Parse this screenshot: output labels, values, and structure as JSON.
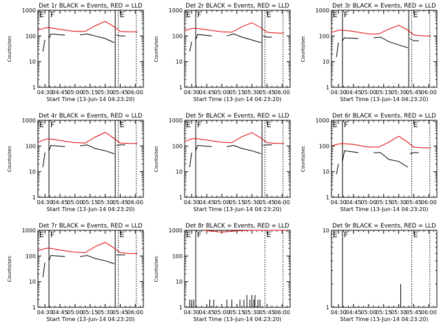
{
  "chart_data": [
    {
      "type": "line",
      "title": "Det 1r BLACK = Events, RED = LLD",
      "xlabel": "Start Time (13-Jun-14 04:23:20)",
      "ylabel": "Counts/sec",
      "yscale": "log",
      "ylim": [
        1,
        1000
      ],
      "xlim": [
        "04:23",
        "06:08"
      ],
      "xticks": [
        "04:30",
        "04:45",
        "05:00",
        "05:15",
        "05:30",
        "05:45",
        "06:00"
      ],
      "yticks": [
        "1",
        "10",
        "100",
        "1000"
      ],
      "annotations": [
        {
          "text": "E",
          "time": "04:23"
        },
        {
          "text": "F",
          "time": "04:34"
        },
        {
          "text": "E",
          "time": "05:43"
        }
      ],
      "markers": [
        {
          "time": "04:34",
          "style": "solid"
        },
        {
          "time": "05:40",
          "style": "solid"
        },
        {
          "time": "05:43",
          "style": "dotted"
        },
        {
          "time": "06:01",
          "style": "dotted"
        }
      ],
      "series": [
        {
          "color": "#e00000",
          "x": [
            "04:23",
            "04:30",
            "04:34",
            "04:45",
            "05:00",
            "05:10",
            "05:20",
            "05:30",
            "05:38",
            "05:45",
            "05:55",
            "06:02"
          ],
          "y": [
            170,
            205,
            210,
            180,
            150,
            150,
            250,
            370,
            240,
            150,
            145,
            145
          ]
        },
        {
          "color": "#000000",
          "gaps": [
            2,
            5,
            10
          ],
          "x": [
            "04:28",
            "04:30",
            "04:34",
            "04:36",
            "04:50",
            "05:05",
            "05:12",
            "05:20",
            "05:30",
            "05:39",
            "05:41",
            "05:45",
            "05:50"
          ],
          "y": [
            25,
            70,
            80,
            120,
            108,
            110,
            120,
            100,
            80,
            55,
            110,
            100,
            100
          ]
        }
      ]
    },
    {
      "type": "line",
      "title": "Det 2r BLACK = Events, RED = LLD",
      "xlabel": "Start Time (13-Jun-14 04:23:20)",
      "ylabel": "Counts/sec",
      "yscale": "log",
      "ylim": [
        1,
        1000
      ],
      "xlim": [
        "04:23",
        "06:08"
      ],
      "xticks": [
        "04:30",
        "04:45",
        "05:00",
        "05:15",
        "05:30",
        "05:45",
        "06:00"
      ],
      "yticks": [
        "1",
        "10",
        "100",
        "1000"
      ],
      "annotations": [
        {
          "text": "E",
          "time": "04:23"
        },
        {
          "text": "F",
          "time": "04:34"
        },
        {
          "text": "E",
          "time": "05:43"
        }
      ],
      "markers": [
        {
          "time": "04:34",
          "style": "solid"
        },
        {
          "time": "05:40",
          "style": "solid"
        },
        {
          "time": "05:43",
          "style": "dotted"
        },
        {
          "time": "06:01",
          "style": "dotted"
        }
      ],
      "series": [
        {
          "color": "#e00000",
          "x": [
            "04:23",
            "04:30",
            "04:34",
            "04:45",
            "05:00",
            "05:10",
            "05:20",
            "05:30",
            "05:38",
            "05:45",
            "05:55",
            "06:02"
          ],
          "y": [
            160,
            195,
            200,
            175,
            145,
            140,
            230,
            330,
            220,
            140,
            130,
            130
          ]
        },
        {
          "color": "#000000",
          "gaps": [
            2,
            5,
            10
          ],
          "x": [
            "04:28",
            "04:30",
            "04:34",
            "04:36",
            "04:50",
            "05:05",
            "05:12",
            "05:20",
            "05:30",
            "05:39",
            "05:41",
            "05:45",
            "05:50"
          ],
          "y": [
            25,
            60,
            70,
            115,
            100,
            100,
            120,
            90,
            70,
            55,
            100,
            90,
            90
          ]
        }
      ]
    },
    {
      "type": "line",
      "title": "Det 3r BLACK = Events, RED = LLD",
      "xlabel": "Start Time (13-Jun-14 04:23:20)",
      "ylabel": "Counts/sec",
      "yscale": "log",
      "ylim": [
        1,
        1000
      ],
      "xlim": [
        "04:23",
        "06:08"
      ],
      "xticks": [
        "04:30",
        "04:45",
        "05:00",
        "05:15",
        "05:30",
        "05:45",
        "06:00"
      ],
      "yticks": [
        "1",
        "10",
        "100",
        "1000"
      ],
      "annotations": [
        {
          "text": "E",
          "time": "04:23"
        },
        {
          "text": "F",
          "time": "04:34"
        },
        {
          "text": "E",
          "time": "05:43"
        }
      ],
      "markers": [
        {
          "time": "04:34",
          "style": "solid"
        },
        {
          "time": "05:40",
          "style": "solid"
        },
        {
          "time": "05:43",
          "style": "dotted"
        },
        {
          "time": "06:01",
          "style": "dotted"
        }
      ],
      "series": [
        {
          "color": "#e00000",
          "x": [
            "04:23",
            "04:30",
            "04:34",
            "04:45",
            "05:00",
            "05:10",
            "05:20",
            "05:30",
            "05:38",
            "05:45",
            "05:55",
            "06:02"
          ],
          "y": [
            140,
            165,
            170,
            150,
            120,
            120,
            185,
            260,
            180,
            110,
            100,
            100
          ]
        },
        {
          "color": "#000000",
          "gaps": [
            2,
            5,
            10
          ],
          "x": [
            "04:28",
            "04:30",
            "04:34",
            "04:36",
            "04:50",
            "05:05",
            "05:12",
            "05:20",
            "05:30",
            "05:39",
            "05:41",
            "05:45",
            "05:50"
          ],
          "y": [
            15,
            55,
            65,
            85,
            80,
            85,
            90,
            60,
            45,
            35,
            80,
            65,
            65
          ]
        }
      ]
    },
    {
      "type": "line",
      "title": "Det 4r BLACK = Events, RED = LLD",
      "xlabel": "Start Time (13-Jun-14 04:23:20)",
      "ylabel": "Counts/sec",
      "yscale": "log",
      "ylim": [
        1,
        1000
      ],
      "xlim": [
        "04:23",
        "06:08"
      ],
      "xticks": [
        "04:30",
        "04:45",
        "05:00",
        "05:15",
        "05:30",
        "05:45",
        "06:00"
      ],
      "yticks": [
        "1",
        "10",
        "100",
        "1000"
      ],
      "annotations": [
        {
          "text": "E",
          "time": "04:23"
        },
        {
          "text": "F",
          "time": "04:34"
        },
        {
          "text": "E",
          "time": "05:43"
        }
      ],
      "markers": [
        {
          "time": "04:34",
          "style": "solid"
        },
        {
          "time": "05:40",
          "style": "solid"
        },
        {
          "time": "05:43",
          "style": "dotted"
        },
        {
          "time": "06:01",
          "style": "dotted"
        }
      ],
      "series": [
        {
          "color": "#e00000",
          "x": [
            "04:23",
            "04:30",
            "04:34",
            "04:45",
            "05:00",
            "05:10",
            "05:20",
            "05:30",
            "05:38",
            "05:45",
            "05:55",
            "06:02"
          ],
          "y": [
            140,
            180,
            190,
            165,
            135,
            130,
            220,
            340,
            210,
            130,
            125,
            125
          ]
        },
        {
          "color": "#000000",
          "gaps": [
            2,
            5,
            10
          ],
          "x": [
            "04:28",
            "04:30",
            "04:34",
            "04:36",
            "04:50",
            "05:05",
            "05:12",
            "05:20",
            "05:30",
            "05:39",
            "05:41",
            "05:45",
            "05:50"
          ],
          "y": [
            15,
            55,
            65,
            105,
            95,
            100,
            110,
            80,
            65,
            50,
            105,
            110,
            110
          ]
        }
      ]
    },
    {
      "type": "line",
      "title": "Det 5r BLACK = Events, RED = LLD",
      "xlabel": "Start Time (13-Jun-14 04:23:20)",
      "ylabel": "Counts/sec",
      "yscale": "log",
      "ylim": [
        1,
        1000
      ],
      "xlim": [
        "04:23",
        "06:08"
      ],
      "xticks": [
        "04:30",
        "04:45",
        "05:00",
        "05:15",
        "05:30",
        "05:45",
        "06:00"
      ],
      "yticks": [
        "1",
        "10",
        "100",
        "1000"
      ],
      "annotations": [
        {
          "text": "E",
          "time": "04:23"
        },
        {
          "text": "F",
          "time": "04:34"
        },
        {
          "text": "E",
          "time": "05:43"
        }
      ],
      "markers": [
        {
          "time": "04:34",
          "style": "solid"
        },
        {
          "time": "05:40",
          "style": "solid"
        },
        {
          "time": "05:43",
          "style": "dotted"
        },
        {
          "time": "06:01",
          "style": "dotted"
        }
      ],
      "series": [
        {
          "color": "#e00000",
          "x": [
            "04:23",
            "04:30",
            "04:34",
            "04:45",
            "05:00",
            "05:10",
            "05:20",
            "05:30",
            "05:38",
            "05:45",
            "05:55",
            "06:02"
          ],
          "y": [
            150,
            190,
            195,
            170,
            140,
            135,
            230,
            330,
            215,
            135,
            125,
            125
          ]
        },
        {
          "color": "#000000",
          "gaps": [
            2,
            5,
            10
          ],
          "x": [
            "04:28",
            "04:30",
            "04:34",
            "04:36",
            "04:50",
            "05:05",
            "05:12",
            "05:20",
            "05:30",
            "05:39",
            "05:41",
            "05:45",
            "05:50"
          ],
          "y": [
            15,
            55,
            65,
            105,
            95,
            95,
            105,
            80,
            65,
            50,
            105,
            110,
            110
          ]
        }
      ]
    },
    {
      "type": "line",
      "title": "Det 6r BLACK = Events, RED = LLD",
      "xlabel": "Start Time (13-Jun-14 04:23:20)",
      "ylabel": "Counts/sec",
      "yscale": "log",
      "ylim": [
        1,
        1000
      ],
      "xlim": [
        "04:23",
        "06:08"
      ],
      "xticks": [
        "04:30",
        "04:45",
        "05:00",
        "05:15",
        "05:30",
        "05:45",
        "06:00"
      ],
      "yticks": [
        "1",
        "10",
        "100",
        "1000"
      ],
      "annotations": [
        {
          "text": "E",
          "time": "04:23"
        },
        {
          "text": "F",
          "time": "04:34"
        },
        {
          "text": "E",
          "time": "05:43"
        }
      ],
      "markers": [
        {
          "time": "04:34",
          "style": "solid"
        },
        {
          "time": "05:43",
          "style": "dotted"
        },
        {
          "time": "06:01",
          "style": "dotted"
        }
      ],
      "series": [
        {
          "color": "#e00000",
          "x": [
            "04:23",
            "04:30",
            "04:34",
            "04:45",
            "05:00",
            "05:10",
            "05:20",
            "05:30",
            "05:38",
            "05:45",
            "05:55",
            "06:02"
          ],
          "y": [
            100,
            120,
            125,
            115,
            90,
            90,
            140,
            240,
            150,
            90,
            85,
            85
          ]
        },
        {
          "color": "#000000",
          "gaps": [
            2,
            5,
            10
          ],
          "x": [
            "04:28",
            "04:30",
            "04:34",
            "04:36",
            "04:50",
            "05:05",
            "05:12",
            "05:20",
            "05:30",
            "05:39",
            "05:41",
            "05:45",
            "05:50"
          ],
          "y": [
            8,
            20,
            25,
            65,
            55,
            55,
            55,
            30,
            25,
            15,
            50,
            55,
            55
          ]
        }
      ]
    },
    {
      "type": "line",
      "title": "Det 7r BLACK = Events, RED = LLD",
      "xlabel": "Start Time (13-Jun-14 04:23:20)",
      "ylabel": "Counts/sec",
      "yscale": "log",
      "ylim": [
        1,
        1000
      ],
      "xlim": [
        "04:23",
        "06:08"
      ],
      "xticks": [
        "04:30",
        "04:45",
        "05:00",
        "05:15",
        "05:30",
        "05:45",
        "06:00"
      ],
      "yticks": [
        "1",
        "10",
        "100",
        "1000"
      ],
      "annotations": [
        {
          "text": "E",
          "time": "04:23"
        },
        {
          "text": "F",
          "time": "04:34"
        },
        {
          "text": "E",
          "time": "05:43"
        }
      ],
      "markers": [
        {
          "time": "04:34",
          "style": "solid"
        },
        {
          "time": "05:40",
          "style": "solid"
        },
        {
          "time": "05:43",
          "style": "dotted"
        },
        {
          "time": "06:01",
          "style": "dotted"
        }
      ],
      "series": [
        {
          "color": "#e00000",
          "x": [
            "04:23",
            "04:30",
            "04:34",
            "04:45",
            "05:00",
            "05:10",
            "05:20",
            "05:30",
            "05:38",
            "05:45",
            "05:55",
            "06:02"
          ],
          "y": [
            160,
            195,
            205,
            170,
            140,
            135,
            230,
            340,
            215,
            135,
            125,
            125
          ]
        },
        {
          "color": "#000000",
          "gaps": [
            2,
            5,
            10
          ],
          "x": [
            "04:28",
            "04:30",
            "04:34",
            "04:36",
            "04:50",
            "05:05",
            "05:12",
            "05:20",
            "05:30",
            "05:39",
            "05:41",
            "05:45",
            "05:50"
          ],
          "y": [
            15,
            55,
            65,
            105,
            95,
            95,
            105,
            80,
            65,
            50,
            110,
            110,
            110
          ]
        }
      ]
    },
    {
      "type": "line",
      "title": "Det 8r BLACK = Events, RED = LLD",
      "xlabel": "Start Time (13-Jun-14 04:23:20)",
      "ylabel": "Counts/sec",
      "yscale": "log",
      "ylim": [
        1,
        1000
      ],
      "xlim": [
        "04:23",
        "06:08"
      ],
      "xticks": [
        "04:30",
        "04:45",
        "05:00",
        "05:15",
        "05:30",
        "05:45",
        "06:00"
      ],
      "yticks": [
        "1",
        "10",
        "100",
        "1000"
      ],
      "annotations": [
        {
          "text": "E",
          "time": "04:23"
        },
        {
          "text": "F",
          "time": "04:34"
        },
        {
          "text": "E",
          "time": "05:43"
        }
      ],
      "markers": [
        {
          "time": "04:34",
          "style": "solid"
        },
        {
          "time": "05:43",
          "style": "dotted"
        },
        {
          "time": "06:01",
          "style": "dotted"
        }
      ],
      "series": [
        {
          "color": "#e00000",
          "x": [
            "04:42",
            "05:00",
            "05:15",
            "05:30",
            "05:45",
            "06:05"
          ],
          "y": [
            1000,
            850,
            950,
            1000,
            1000,
            1000
          ]
        },
        {
          "color": "#000000",
          "spikes": true,
          "x": [
            "04:28",
            "04:30",
            "04:32",
            "04:48",
            "04:52",
            "05:05",
            "05:10",
            "05:18",
            "05:22",
            "05:25",
            "05:28",
            "05:30",
            "05:32",
            "05:33",
            "05:36",
            "05:38"
          ],
          "y": [
            2,
            2,
            2,
            2,
            2,
            2,
            2,
            2,
            2,
            3,
            2,
            3,
            2,
            3,
            2,
            2
          ]
        }
      ]
    },
    {
      "type": "line",
      "title": "Det 9r BLACK = Events, RED = LLD",
      "xlabel": "Start Time (13-Jun-14 04:23:20)",
      "ylabel": "",
      "yscale": "log",
      "ylim": [
        1,
        10
      ],
      "xlim": [
        "04:23",
        "06:08"
      ],
      "xticks": [
        "04:30",
        "04:45",
        "05:00",
        "05:15",
        "05:30",
        "05:45",
        "06:00"
      ],
      "yticks": [
        "1",
        "10"
      ],
      "annotations": [
        {
          "text": "E",
          "time": "04:23"
        },
        {
          "text": "F",
          "time": "04:34"
        },
        {
          "text": "E",
          "time": "05:43"
        }
      ],
      "markers": [
        {
          "time": "04:34",
          "style": "solid"
        },
        {
          "time": "05:43",
          "style": "dotted"
        },
        {
          "time": "06:01",
          "style": "dotted"
        }
      ],
      "series": [
        {
          "color": "#000000",
          "spikes": true,
          "x": [
            "05:32"
          ],
          "y": [
            2
          ]
        }
      ]
    }
  ]
}
